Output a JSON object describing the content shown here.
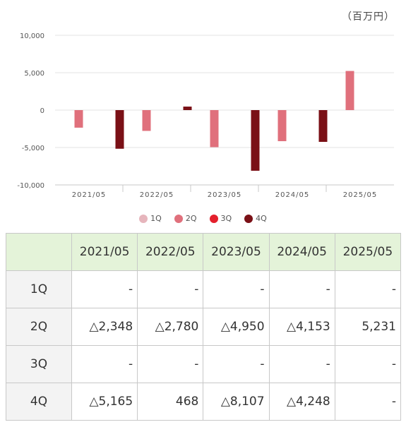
{
  "unit_label": "（百万円）",
  "colors": {
    "1Q": "#e6b5bc",
    "2Q": "#e0707c",
    "3Q": "#e4202c",
    "4Q": "#7a1016",
    "grid": "#e3e3e3",
    "axis": "#c8c8c8"
  },
  "chart_data": {
    "type": "bar",
    "categories": [
      "2021/05",
      "2022/05",
      "2023/05",
      "2024/05",
      "2025/05"
    ],
    "series": [
      {
        "name": "1Q",
        "values": [
          null,
          null,
          null,
          null,
          null
        ]
      },
      {
        "name": "2Q",
        "values": [
          -2348,
          -2780,
          -4950,
          -4153,
          5231
        ]
      },
      {
        "name": "3Q",
        "values": [
          null,
          null,
          null,
          null,
          null
        ]
      },
      {
        "name": "4Q",
        "values": [
          -5165,
          468,
          -8107,
          -4248,
          null
        ]
      }
    ],
    "yticks": [
      10000,
      5000,
      0,
      -5000,
      -10000
    ],
    "ytick_labels": [
      "10,000",
      "5,000",
      "0",
      "-5,000",
      "-10,000"
    ],
    "ylim": [
      -10000,
      10000
    ],
    "legend_position": "bottom"
  },
  "table": {
    "corner": "",
    "headers": [
      "2021/05",
      "2022/05",
      "2023/05",
      "2024/05",
      "2025/05"
    ],
    "rows": [
      {
        "label": "1Q",
        "cells": [
          "-",
          "-",
          "-",
          "-",
          "-"
        ]
      },
      {
        "label": "2Q",
        "cells": [
          "△2,348",
          "△2,780",
          "△4,950",
          "△4,153",
          "5,231"
        ]
      },
      {
        "label": "3Q",
        "cells": [
          "-",
          "-",
          "-",
          "-",
          "-"
        ]
      },
      {
        "label": "4Q",
        "cells": [
          "△5,165",
          "468",
          "△8,107",
          "△4,248",
          "-"
        ]
      }
    ]
  }
}
